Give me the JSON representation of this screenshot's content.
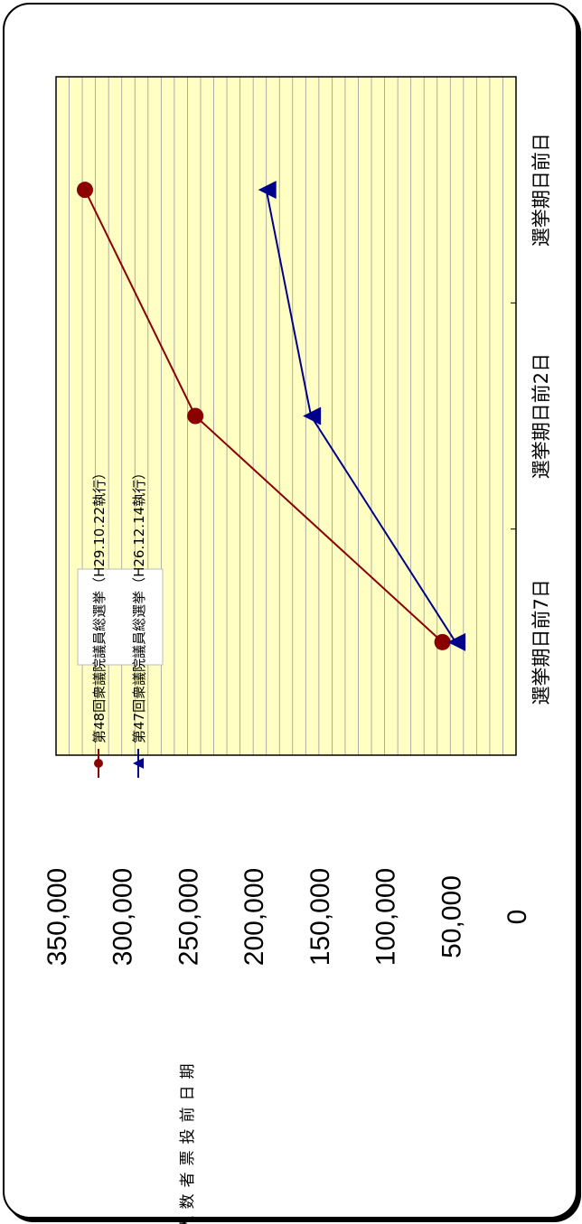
{
  "chart_data": {
    "type": "line",
    "categories": [
      "選挙期日前7日",
      "選挙期日前2日",
      "選挙期日前日"
    ],
    "ylabel": "期日前投票者数 人",
    "ylim": [
      0,
      350000
    ],
    "yticks": [
      "0",
      "50,000",
      "100,000",
      "150,000",
      "200,000",
      "250,000",
      "300,000",
      "350,000"
    ],
    "grid": true,
    "legend_position": "top-left",
    "series": [
      {
        "name": "第48回衆議院議員総選挙（H29.10.22執行）",
        "marker": "circle",
        "color": "#8b0000",
        "values": [
          56000,
          244000,
          328000
        ]
      },
      {
        "name": "第47回衆議院議員総選挙（H26.12.14執行）",
        "marker": "triangle",
        "color": "#00008b",
        "values": [
          46000,
          156000,
          190000
        ]
      }
    ]
  }
}
